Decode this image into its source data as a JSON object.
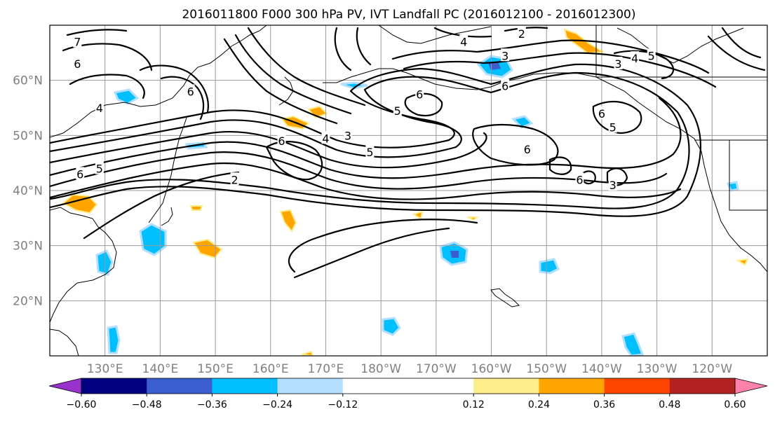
{
  "title": "2016011800 F000 300 hPa PV, IVT Landfall PC (2016012100 - 2016012300)",
  "lat_ticks": [
    {
      "label": "60°N",
      "value": 60
    },
    {
      "label": "50°N",
      "value": 50
    },
    {
      "label": "40°N",
      "value": 40
    },
    {
      "label": "30°N",
      "value": 30
    },
    {
      "label": "20°N",
      "value": 20
    }
  ],
  "lon_ticks": [
    {
      "label": "130°E",
      "value": 130
    },
    {
      "label": "140°E",
      "value": 140
    },
    {
      "label": "150°E",
      "value": 150
    },
    {
      "label": "160°E",
      "value": 160
    },
    {
      "label": "170°E",
      "value": 170
    },
    {
      "label": "180°W",
      "value": 180
    },
    {
      "label": "170°W",
      "value": 190
    },
    {
      "label": "160°W",
      "value": 200
    },
    {
      "label": "150°W",
      "value": 210
    },
    {
      "label": "140°W",
      "value": 220
    },
    {
      "label": "130°W",
      "value": 230
    },
    {
      "label": "120°W",
      "value": 240
    }
  ],
  "map_extent": {
    "lon_min": 120,
    "lon_max": 250,
    "lat_min": 10,
    "lat_max": 70
  },
  "colorbar": {
    "extend": "both",
    "under_color": "#9932cc",
    "over_color": "#ff82ab",
    "colors": [
      "#000080",
      "#3a5fcd",
      "#00bfff",
      "#b2dfff",
      "#ffffff",
      "#ffffff",
      "#ffec8b",
      "#ffa500",
      "#ff4500",
      "#b22222"
    ],
    "boundaries": [
      -0.6,
      -0.48,
      -0.36,
      -0.24,
      -0.12,
      0.0,
      0.12,
      0.24,
      0.36,
      0.48,
      0.6
    ],
    "tick_labels": [
      "−0.60",
      "−0.48",
      "−0.36",
      "−0.24",
      "−0.12",
      "0.12",
      "0.24",
      "0.36",
      "0.48",
      "0.60"
    ],
    "tick_values": [
      -0.6,
      -0.48,
      -0.36,
      -0.24,
      -0.12,
      0.12,
      0.24,
      0.36,
      0.48,
      0.6
    ]
  },
  "contour_labels": [
    {
      "text": "7",
      "lon": 125,
      "lat": 67
    },
    {
      "text": "6",
      "lon": 125,
      "lat": 63
    },
    {
      "text": "4",
      "lon": 129,
      "lat": 55
    },
    {
      "text": "6",
      "lon": 125.5,
      "lat": 43
    },
    {
      "text": "5",
      "lon": 129,
      "lat": 44
    },
    {
      "text": "6",
      "lon": 145.5,
      "lat": 58
    },
    {
      "text": "2",
      "lon": 153.5,
      "lat": 42
    },
    {
      "text": "6",
      "lon": 162,
      "lat": 49
    },
    {
      "text": "4",
      "lon": 170,
      "lat": 49.5
    },
    {
      "text": "3",
      "lon": 174,
      "lat": 50
    },
    {
      "text": "5",
      "lon": 178,
      "lat": 47
    },
    {
      "text": "6",
      "lon": 187,
      "lat": 57.5
    },
    {
      "text": "5",
      "lon": 183,
      "lat": 54.5
    },
    {
      "text": "2",
      "lon": 205.5,
      "lat": 68.5
    },
    {
      "text": "4",
      "lon": 195,
      "lat": 67
    },
    {
      "text": "3",
      "lon": 202.5,
      "lat": 64.5
    },
    {
      "text": "6",
      "lon": 202.5,
      "lat": 59
    },
    {
      "text": "6",
      "lon": 206.5,
      "lat": 47.5
    },
    {
      "text": "6",
      "lon": 216,
      "lat": 42
    },
    {
      "text": "3",
      "lon": 222,
      "lat": 41
    },
    {
      "text": "6",
      "lon": 220,
      "lat": 54
    },
    {
      "text": "5",
      "lon": 222,
      "lat": 51.5
    },
    {
      "text": "3",
      "lon": 223,
      "lat": 63
    },
    {
      "text": "4",
      "lon": 226,
      "lat": 64
    },
    {
      "text": "5",
      "lon": 229,
      "lat": 64.5
    }
  ]
}
